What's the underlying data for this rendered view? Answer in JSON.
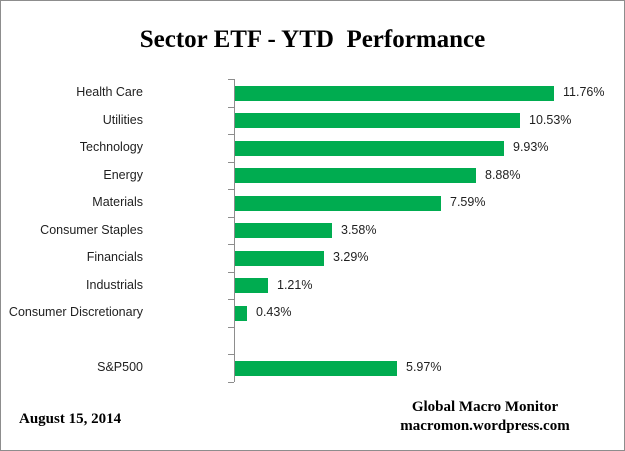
{
  "chart_data": {
    "type": "bar",
    "orientation": "horizontal",
    "title": "Sector ETF - YTD  Performance",
    "categories": [
      "Health Care",
      "Utilities",
      "Technology",
      "Energy",
      "Materials",
      "Consumer Staples",
      "Financials",
      "Industrials",
      "Consumer Discretionary",
      "",
      "S&P500"
    ],
    "values": [
      11.76,
      10.53,
      9.93,
      8.88,
      7.59,
      3.58,
      3.29,
      1.21,
      0.43,
      null,
      5.97
    ],
    "value_labels": [
      "11.76%",
      "10.53%",
      "9.93%",
      "8.88%",
      "7.59%",
      "3.58%",
      "3.29%",
      "1.21%",
      "0.43%",
      "",
      "5.97%"
    ],
    "xlabel": "",
    "ylabel": "",
    "xlim": [
      0,
      12
    ],
    "grid": "off",
    "legend": "none",
    "data_labels": "outside-end",
    "bar_color": "#00AC50",
    "axis_color": "#8d8d8d"
  },
  "footer": {
    "date": "August 15, 2014",
    "source_line1": "Global Macro Monitor",
    "source_line2": "macromon.wordpress.com"
  }
}
